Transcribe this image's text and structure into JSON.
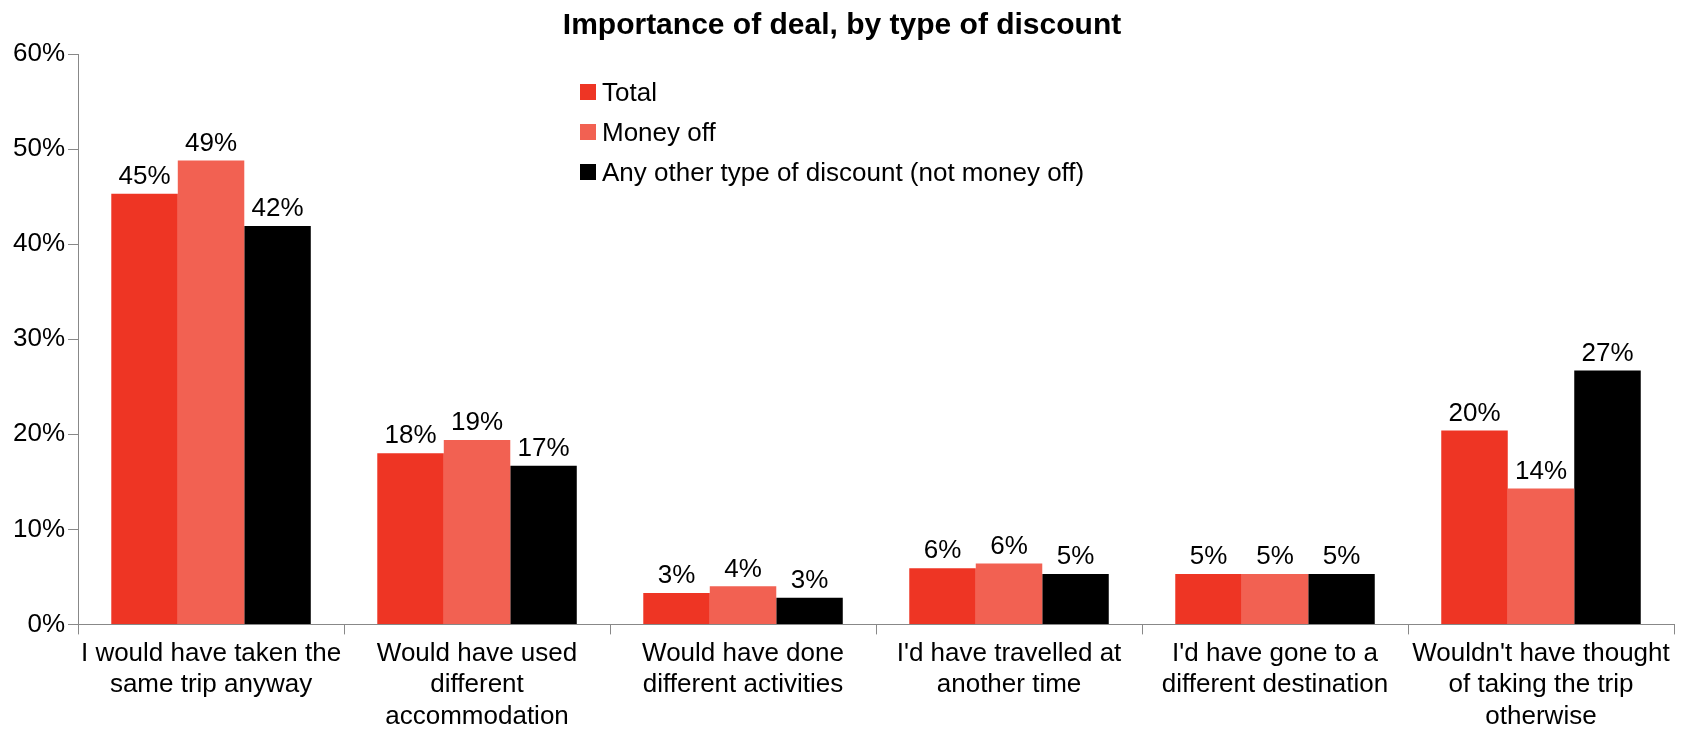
{
  "chart_data": {
    "type": "bar",
    "title": "Importance of deal, by type of discount",
    "categories": [
      "I would have taken the same trip anyway",
      "Would have used different accommodation",
      "Would have done different activities",
      "I'd have travelled at another time",
      "I'd have gone to a different destination",
      "Wouldn't have thought of taking the trip otherwise"
    ],
    "series": [
      {
        "name": "Total",
        "color": "#ee3524",
        "values": [
          45.3,
          18.0,
          3.3,
          5.9,
          5.3,
          20.4
        ],
        "value_labels": [
          "45%",
          "18%",
          "3%",
          "6%",
          "5%",
          "20%"
        ]
      },
      {
        "name": "Money off",
        "color": "#f26152",
        "values": [
          48.8,
          19.4,
          4.0,
          6.4,
          5.3,
          14.3
        ],
        "value_labels": [
          "49%",
          "19%",
          "4%",
          "6%",
          "5%",
          "14%"
        ]
      },
      {
        "name": "Any other type of discount (not money off)",
        "color": "#000000",
        "values": [
          41.9,
          16.7,
          2.8,
          5.3,
          5.3,
          26.7
        ],
        "value_labels": [
          "42%",
          "17%",
          "3%",
          "5%",
          "5%",
          "27%"
        ]
      }
    ],
    "ylim": [
      0,
      60
    ],
    "yticks": [
      {
        "value": 0,
        "label": "0%"
      },
      {
        "value": 10,
        "label": "10%"
      },
      {
        "value": 20,
        "label": "20%"
      },
      {
        "value": 30,
        "label": "30%"
      },
      {
        "value": 40,
        "label": "40%"
      },
      {
        "value": 50,
        "label": "50%"
      },
      {
        "value": 60,
        "label": "60%"
      }
    ],
    "grid": false,
    "legend": "top"
  }
}
